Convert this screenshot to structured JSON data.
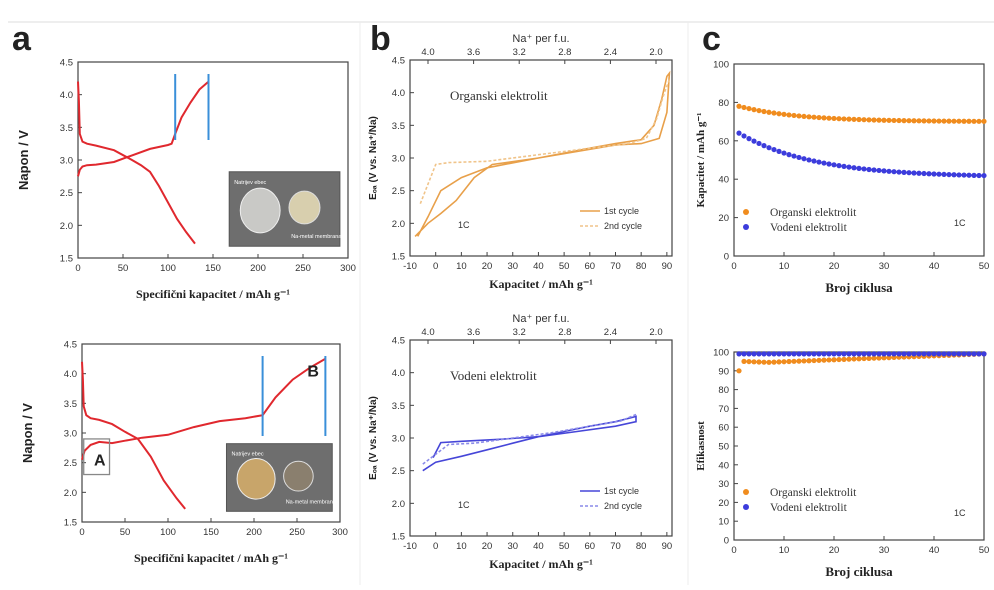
{
  "figure": {
    "panel_labels": [
      "a",
      "b",
      "c"
    ]
  },
  "chart_data": [
    {
      "id": "a_top",
      "type": "line",
      "xlabel": "Specifični kapacitet / mAh g⁻¹",
      "ylabel": "Napon / V",
      "xlim": [
        0,
        300
      ],
      "ylim": [
        1.5,
        4.5
      ],
      "xticks": [
        0,
        50,
        100,
        150,
        200,
        250,
        300
      ],
      "yticks": [
        1.5,
        2.0,
        2.5,
        3.0,
        3.5,
        4.0,
        4.5
      ],
      "colors": {
        "curve": "#e0282e",
        "marker": "#3a8fd9"
      },
      "series": [
        {
          "x": [
            0,
            2,
            5,
            10,
            20,
            40,
            60,
            80,
            100,
            104,
            108,
            115,
            125,
            135,
            145
          ],
          "y": [
            2.75,
            2.85,
            2.9,
            2.92,
            2.93,
            2.97,
            3.07,
            3.17,
            3.23,
            3.25,
            3.4,
            3.65,
            3.88,
            4.08,
            4.2
          ]
        },
        {
          "x": [
            0,
            1,
            2,
            5,
            10,
            20,
            40,
            60,
            70,
            80,
            90,
            100,
            110,
            120,
            130
          ],
          "y": [
            4.2,
            3.9,
            3.4,
            3.28,
            3.25,
            3.22,
            3.15,
            3.0,
            2.92,
            2.82,
            2.6,
            2.35,
            2.1,
            1.9,
            1.72
          ]
        }
      ],
      "vlines": [
        108,
        145
      ],
      "inset": {
        "labels": [
          "Natrijev ebec",
          "Na-metal membrana"
        ]
      }
    },
    {
      "id": "a_bottom",
      "type": "line",
      "xlabel": "Specifični kapacitet / mAh g⁻¹",
      "ylabel": "Napon / V",
      "xlim": [
        0,
        300
      ],
      "ylim": [
        1.5,
        4.5
      ],
      "xticks": [
        0,
        50,
        100,
        150,
        200,
        250,
        300
      ],
      "yticks": [
        1.5,
        2.0,
        2.5,
        3.0,
        3.5,
        4.0,
        4.5
      ],
      "colors": {
        "curve": "#e0282e",
        "marker": "#3a8fd9",
        "box": "#888888"
      },
      "series": [
        {
          "x": [
            0,
            3,
            10,
            20,
            35,
            50,
            70,
            100,
            130,
            160,
            190,
            210,
            225,
            245,
            265,
            283
          ],
          "y": [
            2.55,
            2.7,
            2.8,
            2.85,
            2.83,
            2.87,
            2.92,
            2.97,
            3.1,
            3.2,
            3.25,
            3.3,
            3.6,
            3.9,
            4.1,
            4.25
          ]
        },
        {
          "x": [
            0,
            1,
            2,
            5,
            10,
            20,
            35,
            50,
            65,
            80,
            95,
            110,
            120
          ],
          "y": [
            4.2,
            3.9,
            3.45,
            3.3,
            3.25,
            3.22,
            3.15,
            3.02,
            2.9,
            2.6,
            2.2,
            1.9,
            1.72
          ]
        }
      ],
      "vlines": [
        210,
        283
      ],
      "annotations": [
        {
          "text": "A"
        },
        {
          "text": "B"
        }
      ],
      "inset": {
        "labels": [
          "Natrijev ebec",
          "Na-metal membrana"
        ]
      }
    },
    {
      "id": "b_top",
      "type": "line",
      "title": "Organski elektrolit",
      "xlabel": "Kapacitet / mAh g⁻¹",
      "ylabel": "Eₒₐ (V vs. Na⁺/Na)",
      "top_axis_label": "Na⁺ per f.u.",
      "xlim": [
        -10,
        92
      ],
      "ylim": [
        1.5,
        4.5
      ],
      "xticks": [
        -10,
        0,
        10,
        20,
        30,
        40,
        50,
        60,
        70,
        80,
        90
      ],
      "yticks": [
        1.5,
        2.0,
        2.5,
        3.0,
        3.5,
        4.0,
        4.5
      ],
      "top_ticks": [
        "4.0",
        "3.6",
        "3.2",
        "2.8",
        "2.4",
        "2.0"
      ],
      "legend": {
        "items": [
          "1st cycle",
          "2nd cycle"
        ],
        "position": "bottom-right"
      },
      "rate_label": "1C",
      "colors": {
        "series1": "#e8a04a",
        "series2": "#f0c48a"
      },
      "series": [
        {
          "name": "1st cycle",
          "x": [
            -7,
            -3,
            2,
            10,
            20,
            40,
            60,
            70,
            80,
            85,
            88,
            90,
            91,
            90,
            87,
            80,
            70,
            55,
            40,
            22,
            15,
            8,
            2,
            -3,
            -8
          ],
          "y": [
            1.8,
            2.1,
            2.5,
            2.7,
            2.85,
            3.0,
            3.15,
            3.22,
            3.28,
            3.5,
            3.9,
            4.25,
            4.3,
            3.7,
            3.3,
            3.22,
            3.2,
            3.1,
            3.0,
            2.9,
            2.7,
            2.35,
            2.15,
            2.0,
            1.8
          ]
        },
        {
          "name": "2nd cycle",
          "x": [
            -6,
            -3,
            0,
            5,
            20,
            40,
            60,
            75,
            82,
            86,
            89,
            91
          ],
          "y": [
            2.3,
            2.6,
            2.9,
            2.93,
            2.95,
            3.05,
            3.15,
            3.22,
            3.3,
            3.6,
            4.0,
            4.2
          ]
        }
      ]
    },
    {
      "id": "b_bottom",
      "type": "line",
      "title": "Vodeni elektrolit",
      "xlabel": "Kapacitet / mAh g⁻¹",
      "ylabel": "Eₒₐ (V vs. Na⁺/Na)",
      "top_axis_label": "Na⁺ per f.u.",
      "xlim": [
        -10,
        92
      ],
      "ylim": [
        1.5,
        4.5
      ],
      "xticks": [
        -10,
        0,
        10,
        20,
        30,
        40,
        50,
        60,
        70,
        80,
        90
      ],
      "yticks": [
        1.5,
        2.0,
        2.5,
        3.0,
        3.5,
        4.0,
        4.5
      ],
      "top_ticks": [
        "4.0",
        "3.6",
        "3.2",
        "2.8",
        "2.4",
        "2.0"
      ],
      "legend": {
        "items": [
          "1st cycle",
          "2nd cycle"
        ],
        "position": "bottom-right"
      },
      "rate_label": "1C",
      "colors": {
        "series1": "#4646d8",
        "series2": "#8a8ae8"
      },
      "series": [
        {
          "name": "1st cycle",
          "x": [
            -5,
            0,
            10,
            20,
            30,
            40,
            50,
            60,
            70,
            78,
            78,
            70,
            55,
            40,
            25,
            10,
            2,
            -1
          ],
          "y": [
            2.5,
            2.63,
            2.72,
            2.82,
            2.92,
            3.02,
            3.1,
            3.18,
            3.25,
            3.33,
            3.25,
            3.18,
            3.1,
            3.02,
            2.98,
            2.95,
            2.93,
            2.7
          ]
        },
        {
          "name": "2nd cycle",
          "x": [
            -5,
            0,
            5,
            15,
            30,
            45,
            60,
            72,
            78
          ],
          "y": [
            2.6,
            2.75,
            2.9,
            2.92,
            3.0,
            3.08,
            3.18,
            3.26,
            3.36
          ]
        }
      ]
    },
    {
      "id": "c_top",
      "type": "scatter",
      "xlabel": "Broj ciklusa",
      "ylabel": "Kapacitet / mAh g⁻¹",
      "xlim": [
        0,
        50
      ],
      "ylim": [
        0,
        100
      ],
      "xticks": [
        0,
        10,
        20,
        30,
        40,
        50
      ],
      "yticks": [
        0,
        20,
        40,
        60,
        80,
        100
      ],
      "legend": {
        "items": [
          "Organski elektrolit",
          "Vodeni elektrolit"
        ],
        "position": "bottom-left"
      },
      "rate_label": "1C",
      "colors": {
        "organski": "#f08c1e",
        "vodeni": "#3c3cdc"
      },
      "series": [
        {
          "name": "Organski elektrolit",
          "start": 78,
          "end": 70,
          "decay": 12
        },
        {
          "name": "Vodeni elektrolit",
          "start": 64,
          "end": 41,
          "decay": 15
        }
      ]
    },
    {
      "id": "c_bottom",
      "type": "scatter",
      "xlabel": "Broj ciklusa",
      "ylabel": "Efikasnost",
      "xlim": [
        0,
        50
      ],
      "ylim": [
        0,
        100
      ],
      "xticks": [
        0,
        10,
        20,
        30,
        40,
        50
      ],
      "yticks": [
        0,
        10,
        20,
        30,
        40,
        50,
        60,
        70,
        80,
        90,
        100
      ],
      "legend": {
        "items": [
          "Organski elektrolit",
          "Vodeni elektrolit"
        ],
        "position": "bottom-left"
      },
      "rate_label": "1C",
      "colors": {
        "organski": "#f08c1e",
        "vodeni": "#3c3cdc"
      },
      "series": [
        {
          "name": "Organski elektrolit",
          "first": 90,
          "y": [
            95,
            94.5,
            95,
            95.5,
            96,
            96.5,
            97,
            97.5,
            98,
            98.5,
            99
          ]
        },
        {
          "name": "Vodeni elektrolit",
          "first": 99,
          "y": [
            99
          ]
        }
      ]
    }
  ]
}
